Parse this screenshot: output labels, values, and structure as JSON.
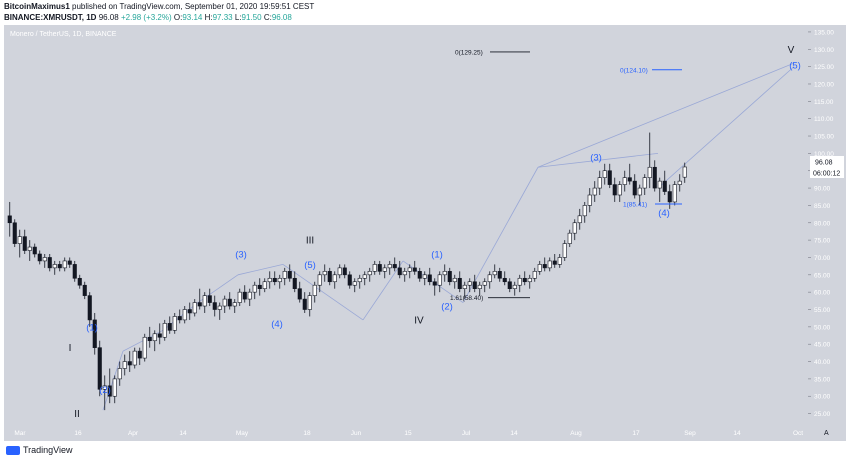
{
  "header": {
    "author": "BitcoinMaximus1",
    "published": "published on TradingView.com, September 01, 2020 19:59:51 CEST",
    "symbol_line": "BINANCE:XMRUSDT, 1D",
    "last": "96.08",
    "change": "+2.98 (+3.2%)",
    "o_label": "O:",
    "o_value": "93.14",
    "h_label": "H:",
    "h_value": "97.33",
    "l_label": "L:",
    "l_value": "91.50",
    "c_label": "C:",
    "c_value": "96.08"
  },
  "chart_title": "Monero / TetherUS, 1D, BINANCE",
  "price_label": "96.08",
  "countdown_label": "06:00:12",
  "auto_label": "A",
  "footer_brand": "TradingView",
  "colors": {
    "background": "#d1d4dc",
    "up": "#ffffff",
    "down": "#131722",
    "wave_blue": "#2962ff",
    "wave_black": "#131722"
  },
  "chart_data": {
    "type": "candlestick",
    "x_ticks": [
      "Mar",
      "16",
      "Apr",
      "14",
      "May",
      "18",
      "Jun",
      "15",
      "Jul",
      "14",
      "Aug",
      "17",
      "Sep",
      "14",
      "Oct"
    ],
    "y_ticks": [
      25,
      30,
      35,
      40,
      45,
      50,
      55,
      60,
      65,
      70,
      75,
      80,
      85,
      90,
      95,
      100,
      105,
      110,
      115,
      120,
      125,
      130,
      135
    ],
    "ylim": [
      22,
      137
    ],
    "candles": [
      [
        82,
        86,
        76,
        80
      ],
      [
        80,
        81,
        73,
        74
      ],
      [
        74,
        78,
        70,
        76
      ],
      [
        76,
        78,
        71,
        72
      ],
      [
        72,
        75,
        69,
        73
      ],
      [
        73,
        74,
        70,
        71
      ],
      [
        71,
        72,
        68,
        69
      ],
      [
        69,
        71,
        67,
        70
      ],
      [
        70,
        71,
        66,
        67
      ],
      [
        67,
        69,
        65,
        68
      ],
      [
        68,
        69,
        66,
        67
      ],
      [
        67,
        70,
        66,
        69
      ],
      [
        69,
        70,
        67,
        68
      ],
      [
        68,
        69,
        63,
        64
      ],
      [
        64,
        65,
        61,
        62
      ],
      [
        62,
        63,
        58,
        59
      ],
      [
        59,
        60,
        50,
        52
      ],
      [
        52,
        54,
        42,
        44
      ],
      [
        44,
        46,
        30,
        32
      ],
      [
        32,
        36,
        26,
        33
      ],
      [
        33,
        38,
        28,
        30
      ],
      [
        30,
        36,
        28,
        35
      ],
      [
        35,
        40,
        33,
        38
      ],
      [
        38,
        42,
        36,
        40
      ],
      [
        40,
        43,
        37,
        39
      ],
      [
        39,
        44,
        38,
        43
      ],
      [
        43,
        44,
        39,
        41
      ],
      [
        41,
        48,
        40,
        47
      ],
      [
        47,
        50,
        44,
        46
      ],
      [
        46,
        49,
        43,
        48
      ],
      [
        48,
        51,
        45,
        47
      ],
      [
        47,
        52,
        46,
        51
      ],
      [
        51,
        53,
        48,
        49
      ],
      [
        49,
        54,
        48,
        53
      ],
      [
        53,
        55,
        51,
        52
      ],
      [
        52,
        56,
        51,
        55
      ],
      [
        55,
        57,
        52,
        54
      ],
      [
        54,
        58,
        53,
        57
      ],
      [
        57,
        61,
        55,
        56
      ],
      [
        56,
        60,
        54,
        59
      ],
      [
        59,
        61,
        56,
        57
      ],
      [
        57,
        59,
        53,
        55
      ],
      [
        55,
        57,
        52,
        56
      ],
      [
        56,
        59,
        54,
        58
      ],
      [
        58,
        60,
        55,
        56
      ],
      [
        56,
        58,
        54,
        57
      ],
      [
        57,
        61,
        56,
        60
      ],
      [
        60,
        62,
        57,
        58
      ],
      [
        58,
        61,
        56,
        60
      ],
      [
        60,
        63,
        58,
        62
      ],
      [
        62,
        64,
        59,
        61
      ],
      [
        61,
        64,
        60,
        63
      ],
      [
        63,
        66,
        61,
        64
      ],
      [
        64,
        66,
        62,
        63
      ],
      [
        63,
        65,
        61,
        64
      ],
      [
        64,
        67,
        62,
        66
      ],
      [
        66,
        68,
        63,
        64
      ],
      [
        64,
        66,
        60,
        61
      ],
      [
        61,
        63,
        57,
        58
      ],
      [
        58,
        60,
        54,
        55
      ],
      [
        55,
        60,
        53,
        59
      ],
      [
        59,
        63,
        57,
        62
      ],
      [
        62,
        66,
        60,
        65
      ],
      [
        65,
        68,
        63,
        66
      ],
      [
        66,
        67,
        62,
        63
      ],
      [
        63,
        66,
        61,
        65
      ],
      [
        65,
        68,
        64,
        67
      ],
      [
        67,
        68,
        64,
        65
      ],
      [
        65,
        66,
        61,
        62
      ],
      [
        62,
        64,
        60,
        63
      ],
      [
        63,
        65,
        61,
        64
      ],
      [
        64,
        66,
        62,
        65
      ],
      [
        65,
        67,
        63,
        66
      ],
      [
        66,
        69,
        65,
        68
      ],
      [
        68,
        69,
        65,
        66
      ],
      [
        66,
        68,
        64,
        67
      ],
      [
        67,
        69,
        65,
        68
      ],
      [
        68,
        70,
        66,
        67
      ],
      [
        67,
        69,
        64,
        65
      ],
      [
        65,
        67,
        63,
        66
      ],
      [
        66,
        68,
        64,
        67
      ],
      [
        67,
        69,
        65,
        66
      ],
      [
        66,
        67,
        63,
        64
      ],
      [
        64,
        66,
        62,
        65
      ],
      [
        65,
        67,
        62,
        63
      ],
      [
        63,
        64,
        59,
        62
      ],
      [
        62,
        66,
        60,
        65
      ],
      [
        65,
        68,
        63,
        66
      ],
      [
        66,
        67,
        62,
        63
      ],
      [
        63,
        65,
        61,
        64
      ],
      [
        64,
        66,
        60,
        61
      ],
      [
        61,
        63,
        58,
        62
      ],
      [
        62,
        64,
        60,
        63
      ],
      [
        63,
        65,
        60,
        61
      ],
      [
        61,
        63,
        59,
        62
      ],
      [
        62,
        64,
        60,
        63
      ],
      [
        63,
        66,
        61,
        65
      ],
      [
        65,
        68,
        64,
        66
      ],
      [
        66,
        67,
        63,
        64
      ],
      [
        64,
        66,
        62,
        63
      ],
      [
        63,
        64,
        60,
        61
      ],
      [
        61,
        63,
        59,
        62
      ],
      [
        62,
        65,
        60,
        64
      ],
      [
        64,
        66,
        62,
        63
      ],
      [
        63,
        65,
        61,
        64
      ],
      [
        64,
        67,
        63,
        66
      ],
      [
        66,
        69,
        65,
        68
      ],
      [
        68,
        70,
        66,
        67
      ],
      [
        67,
        70,
        66,
        69
      ],
      [
        69,
        71,
        67,
        68
      ],
      [
        68,
        71,
        67,
        70
      ],
      [
        70,
        75,
        69,
        74
      ],
      [
        74,
        78,
        73,
        77
      ],
      [
        77,
        81,
        75,
        80
      ],
      [
        80,
        84,
        78,
        82
      ],
      [
        82,
        86,
        80,
        85
      ],
      [
        85,
        90,
        83,
        88
      ],
      [
        88,
        92,
        86,
        90
      ],
      [
        90,
        95,
        88,
        93
      ],
      [
        93,
        97,
        91,
        95
      ],
      [
        95,
        97,
        90,
        91
      ],
      [
        91,
        93,
        86,
        88
      ],
      [
        88,
        92,
        86,
        91
      ],
      [
        91,
        95,
        89,
        93
      ],
      [
        93,
        97,
        91,
        92
      ],
      [
        92,
        94,
        87,
        88
      ],
      [
        88,
        91,
        85,
        90
      ],
      [
        90,
        94,
        88,
        93
      ],
      [
        93,
        106,
        90,
        96
      ],
      [
        96,
        98,
        89,
        90
      ],
      [
        90,
        93,
        86,
        92
      ],
      [
        92,
        95,
        88,
        89
      ],
      [
        89,
        91,
        84,
        86
      ],
      [
        86,
        92,
        85,
        91
      ],
      [
        91,
        94,
        89,
        92
      ],
      [
        93.14,
        97.33,
        91.5,
        96.08
      ]
    ],
    "wave_labels": [
      {
        "text": "I",
        "price": 43
      },
      {
        "text": "II",
        "price": 24
      },
      {
        "text": "(1)",
        "price": 49
      },
      {
        "text": "(2)",
        "price": 31
      },
      {
        "text": "(3)",
        "price": 70
      },
      {
        "text": "(4)",
        "price": 50
      },
      {
        "text": "(5)",
        "price": 67
      },
      {
        "text": "III",
        "price": 74
      },
      {
        "text": "IV",
        "price": 51
      },
      {
        "text": "(1)",
        "price": 70
      },
      {
        "text": "(2)",
        "price": 55
      },
      {
        "text": "(3)",
        "price": 98
      },
      {
        "text": "(4)",
        "price": 82
      },
      {
        "text": "(5)",
        "price": 124.5
      },
      {
        "text": "V",
        "price": 129
      }
    ],
    "fib_levels": [
      {
        "text": "0(129.25)",
        "price": 129.25
      },
      {
        "text": "0(124.10)",
        "price": 124.1
      },
      {
        "text": "1(85.41)",
        "price": 85.41
      },
      {
        "text": "1.61(58.40)",
        "price": 58.4
      }
    ]
  }
}
